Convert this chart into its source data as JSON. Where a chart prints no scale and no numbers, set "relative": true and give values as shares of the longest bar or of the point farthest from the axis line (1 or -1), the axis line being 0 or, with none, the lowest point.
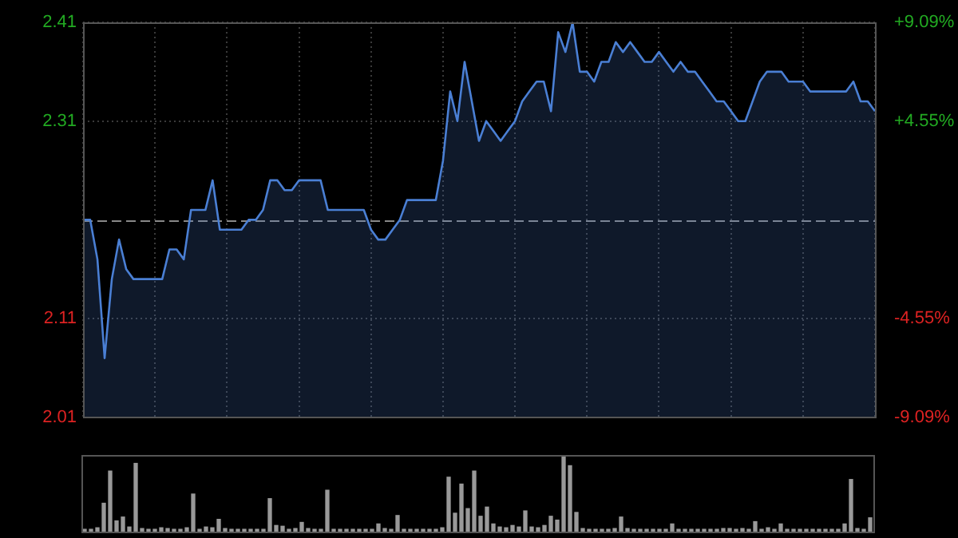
{
  "chart_data": [
    {
      "type": "area",
      "color": "#4a7fd4",
      "categories": [
        null,
        null,
        null,
        null,
        null,
        null,
        null,
        null,
        null,
        null,
        null,
        null,
        null,
        null,
        null,
        null,
        null,
        null,
        null,
        null,
        null,
        null,
        null,
        null,
        null,
        null,
        null,
        null,
        null,
        null,
        null,
        null,
        null,
        null,
        null,
        null,
        null,
        null,
        null,
        null,
        null,
        null,
        null,
        null,
        null,
        null,
        null,
        null,
        null,
        null,
        null,
        null,
        null,
        null,
        null,
        null,
        null,
        null,
        null,
        null,
        null,
        null,
        null,
        null,
        null,
        null,
        null,
        null,
        null,
        null,
        null,
        null,
        null,
        null,
        null,
        null,
        null,
        null,
        null,
        null,
        null,
        null,
        null,
        null,
        null,
        null,
        null,
        null,
        null,
        null,
        null,
        null,
        null,
        null,
        null,
        null,
        null,
        null,
        null,
        null,
        null,
        null,
        null,
        null,
        null,
        null,
        null,
        null,
        null,
        null,
        null
      ],
      "values": [
        2.21,
        2.21,
        2.17,
        2.07,
        2.15,
        2.19,
        2.16,
        2.15,
        2.15,
        2.15,
        2.15,
        2.15,
        2.18,
        2.18,
        2.17,
        2.22,
        2.22,
        2.22,
        2.25,
        2.2,
        2.2,
        2.2,
        2.2,
        2.21,
        2.21,
        2.22,
        2.25,
        2.25,
        2.24,
        2.24,
        2.25,
        2.25,
        2.25,
        2.25,
        2.22,
        2.22,
        2.22,
        2.22,
        2.22,
        2.22,
        2.2,
        2.19,
        2.19,
        2.2,
        2.21,
        2.23,
        2.23,
        2.23,
        2.23,
        2.23,
        2.27,
        2.34,
        2.31,
        2.37,
        2.33,
        2.29,
        2.31,
        2.3,
        2.29,
        2.3,
        2.31,
        2.33,
        2.34,
        2.35,
        2.35,
        2.32,
        2.4,
        2.38,
        2.41,
        2.36,
        2.36,
        2.35,
        2.37,
        2.37,
        2.39,
        2.38,
        2.39,
        2.38,
        2.37,
        2.37,
        2.38,
        2.37,
        2.36,
        2.37,
        2.36,
        2.36,
        2.35,
        2.34,
        2.33,
        2.33,
        2.32,
        2.31,
        2.31,
        2.33,
        2.35,
        2.36,
        2.36,
        2.36,
        2.35,
        2.35,
        2.35,
        2.34,
        2.34,
        2.34,
        2.34,
        2.34,
        2.34,
        2.35,
        2.33,
        2.33,
        2.32
      ],
      "ylim": [
        2.01,
        2.41
      ],
      "yticks": [
        2.01,
        2.11,
        2.31,
        2.41
      ],
      "y2lim": [
        -9.09,
        9.09
      ],
      "y2ticks": [
        {
          "value": -9.09,
          "label": "-9.09%"
        },
        {
          "value": -4.55,
          "label": "-4.55%"
        },
        {
          "value": 4.55,
          "label": "+4.55%"
        },
        {
          "value": 9.09,
          "label": "+9.09%"
        }
      ],
      "ref_lines": [
        {
          "axis": "y",
          "value": 2.21,
          "color": "#888888",
          "line_style": "dashed"
        }
      ],
      "grid": true,
      "legend": false
    },
    {
      "type": "bar",
      "relative": true,
      "color": "#999999",
      "categories": [
        null,
        null,
        null,
        null,
        null,
        null,
        null,
        null,
        null,
        null,
        null,
        null,
        null,
        null,
        null,
        null,
        null,
        null,
        null,
        null,
        null,
        null,
        null,
        null,
        null,
        null,
        null,
        null,
        null,
        null,
        null,
        null,
        null,
        null,
        null,
        null,
        null,
        null,
        null,
        null,
        null,
        null,
        null,
        null,
        null,
        null,
        null,
        null,
        null,
        null,
        null,
        null,
        null,
        null,
        null,
        null,
        null,
        null,
        null,
        null,
        null,
        null,
        null,
        null,
        null,
        null,
        null,
        null,
        null,
        null,
        null,
        null,
        null,
        null,
        null,
        null,
        null,
        null,
        null,
        null,
        null,
        null,
        null,
        null,
        null,
        null,
        null,
        null,
        null,
        null,
        null,
        null,
        null,
        null,
        null,
        null,
        null,
        null,
        null,
        null,
        null,
        null,
        null,
        null,
        null,
        null,
        null,
        null,
        null,
        null,
        null,
        null,
        null,
        null,
        null,
        null,
        null,
        null,
        null,
        null,
        null,
        null,
        null,
        null
      ],
      "values": [
        0.03,
        0.03,
        0.05,
        0.37,
        0.79,
        0.14,
        0.19,
        0.06,
        0.89,
        0.04,
        0.03,
        0.03,
        0.05,
        0.04,
        0.03,
        0.03,
        0.05,
        0.49,
        0.03,
        0.06,
        0.05,
        0.16,
        0.04,
        0.03,
        0.03,
        0.03,
        0.03,
        0.03,
        0.03,
        0.43,
        0.08,
        0.07,
        0.03,
        0.04,
        0.12,
        0.04,
        0.03,
        0.03,
        0.54,
        0.03,
        0.03,
        0.03,
        0.03,
        0.03,
        0.03,
        0.03,
        0.1,
        0.04,
        0.03,
        0.21,
        0.03,
        0.03,
        0.03,
        0.03,
        0.03,
        0.03,
        0.05,
        0.71,
        0.24,
        0.62,
        0.3,
        0.79,
        0.2,
        0.32,
        0.1,
        0.06,
        0.05,
        0.08,
        0.06,
        0.27,
        0.06,
        0.05,
        0.08,
        0.2,
        0.15,
        1,
        0.86,
        0.25,
        0.04,
        0.03,
        0.03,
        0.03,
        0.03,
        0.04,
        0.19,
        0.04,
        0.03,
        0.03,
        0.03,
        0.03,
        0.03,
        0.03,
        0.1,
        0.03,
        0.03,
        0.03,
        0.03,
        0.03,
        0.03,
        0.03,
        0.04,
        0.04,
        0.03,
        0.04,
        0.03,
        0.13,
        0.03,
        0.05,
        0.03,
        0.1,
        0.03,
        0.03,
        0.03,
        0.03,
        0.03,
        0.03,
        0.03,
        0.03,
        0.03,
        0.1,
        0.68,
        0.04,
        0.03,
        0.18
      ],
      "legend": false
    }
  ]
}
